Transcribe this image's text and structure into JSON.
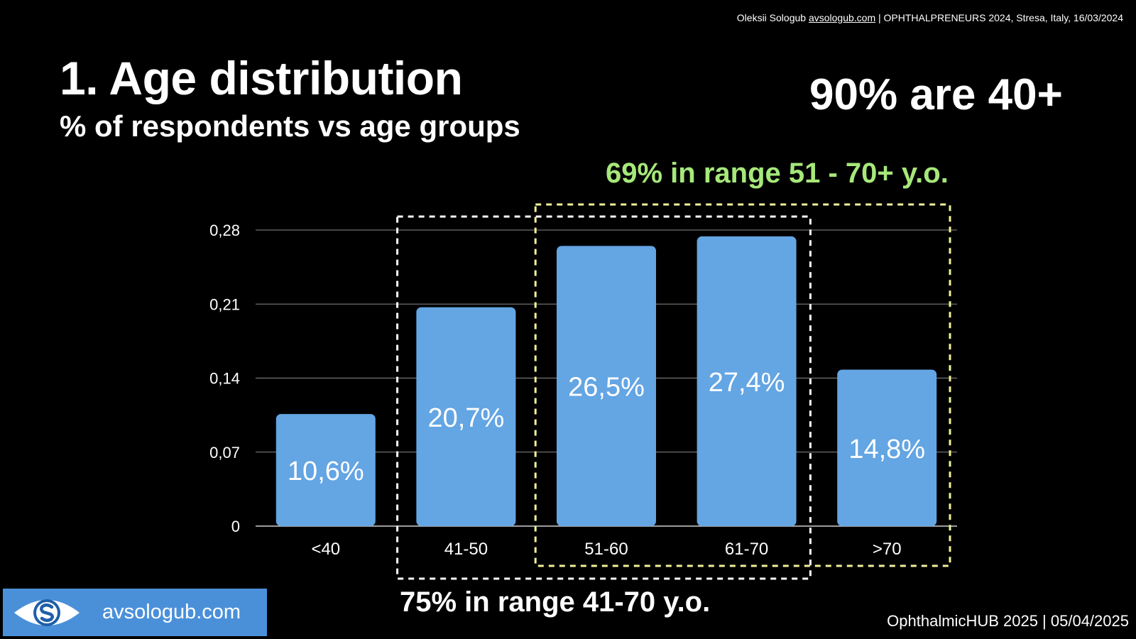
{
  "credit_top": {
    "author": "Oleksii Sologub ",
    "link": "avsologub.com",
    "event": " | OPHTHALPRENEURS 2024, Stresa, Italy, 16/03/2024"
  },
  "headline": "90% are 40+",
  "green_note": "69% in range 51 - 70+ y.o.",
  "bottom_note": "75% in range 41-70 y.o.",
  "credit_bottom": "OphthalmicHUB 2025 | 05/04/2025",
  "brand": {
    "text": "avsologub.com",
    "logo_icon": "eye-s-logo-icon"
  },
  "colors": {
    "bar": "#64a5e3",
    "green_box": "#f1f19a",
    "white_box": "#ffffff",
    "green_text": "#a6e87a"
  },
  "chart_data": {
    "type": "bar",
    "title": "1. Age distribution",
    "subtitle": "% of respondents vs age groups",
    "categories": [
      "<40",
      "41-50",
      "51-60",
      "61-70",
      ">70"
    ],
    "values": [
      0.106,
      0.207,
      0.265,
      0.274,
      0.148
    ],
    "data_labels": [
      "10,6%",
      "20,7%",
      "26,5%",
      "27,4%",
      "14,8%"
    ],
    "yticks": [
      0,
      0.07,
      0.14,
      0.21,
      0.28
    ],
    "ytick_labels": [
      "0",
      "0,07",
      "0,14",
      "0,21",
      "0,28"
    ],
    "ylim": [
      0,
      0.28
    ],
    "grid": true,
    "xlabel": "",
    "ylabel": ""
  }
}
